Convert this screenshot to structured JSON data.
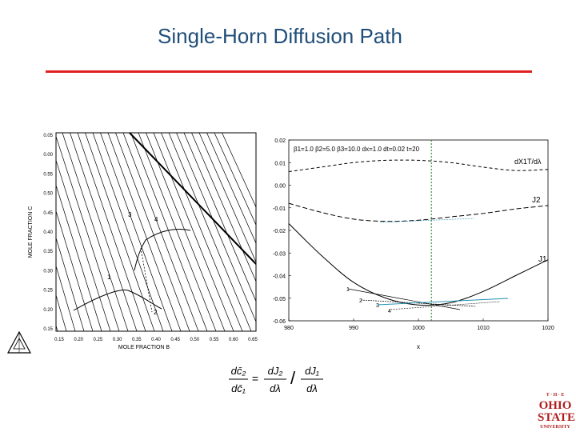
{
  "slide": {
    "title": "Single-Horn Diffusion Path",
    "accent_color": "#e02020",
    "title_color": "#1f4e79"
  },
  "chart_data": [
    {
      "type": "line",
      "panel": "ternary-diffusion-path",
      "xlabel": "MOLE FRACTION B",
      "ylabel": "MOLE FRACTION C",
      "x_ticks": [
        "0.15",
        "0.20",
        "0.25",
        "0.30",
        "0.35",
        "0.40",
        "0.45",
        "0.50",
        "0.55",
        "0.60",
        "0.65"
      ],
      "y_ticks": [
        "0.05",
        "0.00",
        "0.55",
        "0.50",
        "0.45",
        "0.40",
        "0.35",
        "0.30",
        "0.25",
        "0.20",
        "0.15"
      ],
      "xlim": [
        0.15,
        0.65
      ],
      "ylim": [
        0.15,
        0.65
      ],
      "point_labels": [
        "1",
        "2",
        "3",
        "4"
      ],
      "tie_line_count": 30
    },
    {
      "type": "line",
      "panel": "derivative-profiles",
      "annotation": "β1=1.0 β2=5.0 β3=10.0 dx=1.0 dt=0.02 t=20",
      "xlabel": "x",
      "xlim": [
        980,
        1020
      ],
      "ylim": [
        -0.06,
        0.02
      ],
      "x_ticks": [
        "980",
        "990",
        "1000",
        "1010",
        "1020"
      ],
      "y_ticks": [
        "0.02",
        "0.01",
        "0.00",
        "-0.01",
        "-0.02",
        "-0.03",
        "-0.04",
        "-0.05",
        "-0.06"
      ],
      "vline_x": 1002,
      "series_labels": [
        "dX1T/dλ",
        "J2",
        "J1"
      ],
      "point_labels": [
        "1",
        "2",
        "3",
        "4"
      ],
      "series": [
        {
          "name": "dX1T/dλ",
          "x": [
            980,
            985,
            990,
            995,
            1000,
            1005,
            1010,
            1015,
            1020
          ],
          "y": [
            0.006,
            0.008,
            0.01,
            0.011,
            0.011,
            0.01,
            0.008,
            0.0065,
            0.007
          ]
        },
        {
          "name": "J2",
          "x": [
            980,
            985,
            990,
            995,
            1000,
            1005,
            1010,
            1015,
            1020
          ],
          "y": [
            -0.008,
            -0.012,
            -0.015,
            -0.016,
            -0.0155,
            -0.014,
            -0.0125,
            -0.0105,
            -0.009
          ]
        },
        {
          "name": "J1",
          "x": [
            980,
            985,
            990,
            995,
            1000,
            1005,
            1010,
            1015,
            1020
          ],
          "y": [
            -0.017,
            -0.031,
            -0.043,
            -0.05,
            -0.053,
            -0.052,
            -0.047,
            -0.04,
            -0.033
          ]
        }
      ]
    }
  ],
  "equation": {
    "lhs_num": "dc̄₂",
    "lhs_den": "dc̄₁",
    "eq": "=",
    "r1_num": "dJ₂",
    "r1_den": "dλ",
    "slash": "/",
    "r2_num": "dJ₁",
    "r2_den": "dλ"
  },
  "logo": {
    "line1": "T · H · E",
    "line2": "OHIO",
    "line3": "STATE",
    "line4": "UNIVERSITY"
  }
}
